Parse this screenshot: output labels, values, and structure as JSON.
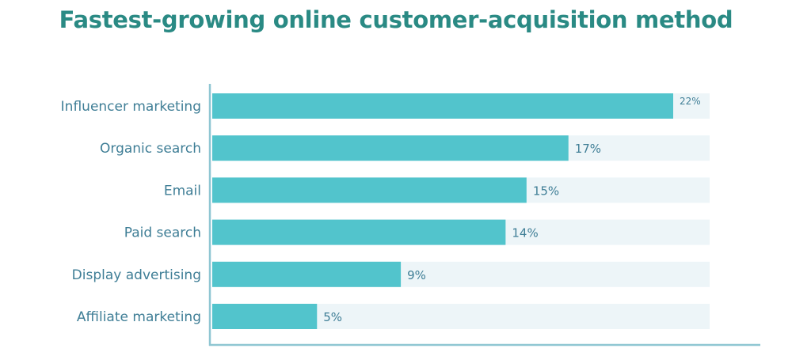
{
  "colors": {
    "title": "#2a8a84",
    "bar": "#52c4cc",
    "track": "#edf5f8",
    "axis": "#8fc6d2",
    "label": "#3f7e96"
  },
  "chart_data": {
    "type": "bar",
    "orientation": "horizontal",
    "title": "Fastest-growing online customer-acquisition method",
    "xlabel": "",
    "ylabel": "",
    "categories": [
      "Influencer marketing",
      "Organic search",
      "Email",
      "Paid search",
      "Display advertising",
      "Affiliate marketing"
    ],
    "values": [
      22,
      17,
      15,
      14,
      9,
      5
    ],
    "value_labels": [
      "22%",
      "17%",
      "15%",
      "14%",
      "9%",
      "5%"
    ],
    "xlim": [
      0,
      24
    ],
    "grid": false,
    "legend": "none"
  }
}
